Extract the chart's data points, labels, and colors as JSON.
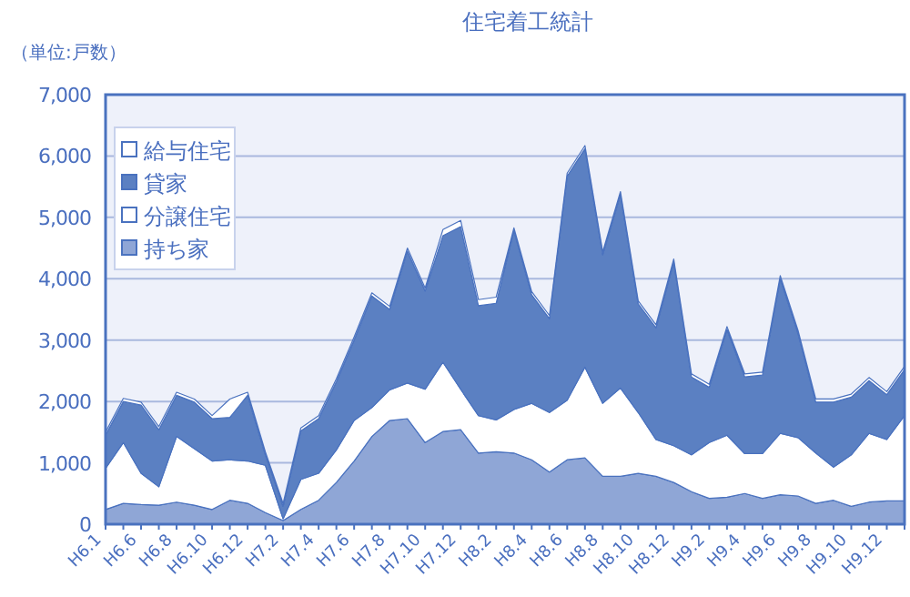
{
  "chart_data": {
    "type": "area",
    "stacked": true,
    "title": "住宅着工統計",
    "ylabel": "（単位:戸数）",
    "categories": [
      "H6.1",
      null,
      "H6.6",
      null,
      "H6.8",
      null,
      "H6.10",
      null,
      "H6.12",
      null,
      "H7.2",
      null,
      "H7.4",
      null,
      "H7.6",
      null,
      "H7.8",
      null,
      "H7.10",
      null,
      "H7.12",
      null,
      "H8.2",
      null,
      "H8.4",
      null,
      "H8.6",
      null,
      "H8.8",
      null,
      "H8.10",
      null,
      "H8.12",
      null,
      "H9.2",
      null,
      "H9.4",
      null,
      "H9.6",
      null,
      "H9.8",
      null,
      "H9.10",
      null,
      "H9.12",
      null
    ],
    "series": [
      {
        "name": "持ち家",
        "color": "#8fa6d6",
        "values": [
          240,
          340,
          320,
          310,
          360,
          310,
          240,
          390,
          340,
          190,
          60,
          240,
          390,
          680,
          1030,
          1430,
          1690,
          1720,
          1330,
          1510,
          1540,
          1160,
          1180,
          1160,
          1050,
          850,
          1050,
          1080,
          780,
          780,
          830,
          780,
          680,
          530,
          420,
          440,
          500,
          420,
          480,
          460,
          340,
          390,
          290,
          360,
          380,
          380
        ]
      },
      {
        "name": "分譲住宅",
        "color": "#ffffff",
        "values": [
          670,
          990,
          510,
          300,
          1070,
          920,
          790,
          660,
          690,
          770,
          30,
          490,
          440,
          530,
          660,
          470,
          500,
          580,
          870,
          1130,
          660,
          610,
          520,
          710,
          920,
          970,
          970,
          1480,
          1190,
          1440,
          990,
          600,
          600,
          600,
          910,
          1010,
          650,
          730,
          1000,
          950,
          820,
          540,
          840,
          1120,
          1000,
          1390
        ]
      },
      {
        "name": "貸家",
        "color": "#5b80c2",
        "values": [
          540,
          670,
          1110,
          930,
          670,
          760,
          690,
          690,
          1070,
          170,
          200,
          790,
          890,
          1110,
          1310,
          1820,
          1310,
          2150,
          1600,
          2060,
          2650,
          1790,
          1900,
          2910,
          1770,
          1530,
          3650,
          3560,
          2420,
          3150,
          1770,
          1820,
          2990,
          1270,
          900,
          1720,
          1250,
          1280,
          2520,
          1700,
          830,
          1060,
          940,
          860,
          730,
          750
        ]
      },
      {
        "name": "給与住宅",
        "color": "#ffffff",
        "values": [
          50,
          50,
          50,
          50,
          50,
          50,
          50,
          300,
          50,
          50,
          50,
          50,
          50,
          50,
          50,
          50,
          50,
          50,
          50,
          100,
          100,
          100,
          100,
          50,
          50,
          50,
          50,
          50,
          50,
          50,
          50,
          50,
          50,
          50,
          50,
          50,
          50,
          50,
          50,
          50,
          50,
          50,
          50,
          50,
          50,
          50
        ]
      }
    ],
    "ylim": [
      0,
      7000
    ],
    "yticks": [
      {
        "value": 0,
        "label": "0"
      },
      {
        "value": 1000,
        "label": "1,000"
      },
      {
        "value": 2000,
        "label": "2,000"
      },
      {
        "value": 3000,
        "label": "3,000"
      },
      {
        "value": 4000,
        "label": "4,000"
      },
      {
        "value": 5000,
        "label": "5,000"
      },
      {
        "value": 6000,
        "label": "6,000"
      },
      {
        "value": 7000,
        "label": "7,000"
      }
    ],
    "grid": "y",
    "legend": "top left"
  }
}
